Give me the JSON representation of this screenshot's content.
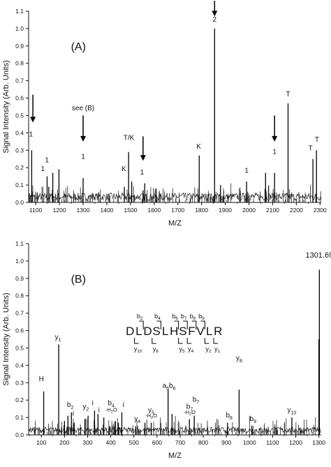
{
  "chart_data": [
    {
      "type": "line",
      "panel_label": "(A)",
      "xlabel": "M/Z",
      "ylabel": "Signal Intensity (Arb. Units)",
      "xlim": [
        1070,
        2305
      ],
      "ylim": [
        0,
        1.1
      ],
      "xticks": [
        1100,
        1200,
        1300,
        1400,
        1500,
        1600,
        1700,
        1800,
        1900,
        2000,
        2100,
        2200,
        2300
      ],
      "yticks": [
        0.0,
        0.1,
        0.2,
        0.3,
        0.4,
        0.5,
        0.6,
        0.7,
        0.8,
        0.9,
        1.0,
        1.1
      ],
      "peaks": [
        {
          "x": 1083,
          "y": 0.3
        },
        {
          "x": 1148,
          "y": 0.15
        },
        {
          "x": 1155,
          "y": 0.09
        },
        {
          "x": 1172,
          "y": 0.17
        },
        {
          "x": 1198,
          "y": 0.19
        },
        {
          "x": 1300,
          "y": 0.14
        },
        {
          "x": 1474,
          "y": 0.09
        },
        {
          "x": 1492,
          "y": 0.29
        },
        {
          "x": 1505,
          "y": 0.12
        },
        {
          "x": 1553,
          "y": 0.07
        },
        {
          "x": 1560,
          "y": 0.11
        },
        {
          "x": 1608,
          "y": 0.08
        },
        {
          "x": 1790,
          "y": 0.27
        },
        {
          "x": 1855,
          "y": 1.0
        },
        {
          "x": 1880,
          "y": 0.1
        },
        {
          "x": 1990,
          "y": 0.12
        },
        {
          "x": 2070,
          "y": 0.17
        },
        {
          "x": 2108,
          "y": 0.17
        },
        {
          "x": 2165,
          "y": 0.57
        },
        {
          "x": 2270,
          "y": 0.25
        },
        {
          "x": 2285,
          "y": 0.3
        }
      ],
      "annotations": [
        {
          "text": "1",
          "x": 1080,
          "y": 0.38
        },
        {
          "text": "1",
          "x": 1147,
          "y": 0.23
        },
        {
          "text": "1",
          "x": 1130,
          "y": 0.18
        },
        {
          "text": "see (B)",
          "x": 1300,
          "y": 0.53
        },
        {
          "text": "1",
          "x": 1300,
          "y": 0.25
        },
        {
          "text": "T/K",
          "x": 1493,
          "y": 0.36
        },
        {
          "text": "K",
          "x": 1472,
          "y": 0.18
        },
        {
          "text": "1",
          "x": 1549,
          "y": 0.16
        },
        {
          "text": "K",
          "x": 1788,
          "y": 0.31
        },
        {
          "text": "2",
          "x": 1855,
          "y": 1.04
        },
        {
          "text": "1",
          "x": 1990,
          "y": 0.17
        },
        {
          "text": "1",
          "x": 2108,
          "y": 0.28
        },
        {
          "text": "T",
          "x": 2165,
          "y": 0.61
        },
        {
          "text": "T",
          "x": 2260,
          "y": 0.3
        },
        {
          "text": "T",
          "x": 2287,
          "y": 0.35
        }
      ],
      "arrows": [
        {
          "x": 1088,
          "from": 0.62,
          "to": 0.46
        },
        {
          "x": 1300,
          "from": 0.5,
          "to": 0.35
        },
        {
          "x": 1553,
          "from": 0.38,
          "to": 0.24
        },
        {
          "x": 1855,
          "from": 1.16,
          "to": 1.07
        },
        {
          "x": 2108,
          "from": 0.5,
          "to": 0.35
        }
      ]
    },
    {
      "type": "line",
      "panel_label": "(B)",
      "xlabel": "M/Z",
      "ylabel": "Signal Intensity (Arb. Units)",
      "xlim": [
        45,
        1310
      ],
      "ylim": [
        0,
        1.1
      ],
      "xticks": [
        100,
        200,
        300,
        400,
        500,
        600,
        700,
        800,
        900,
        1000,
        1100,
        1200,
        1300
      ],
      "yticks": [
        0.0,
        0.1,
        0.2,
        0.3,
        0.4,
        0.5,
        0.6,
        0.7,
        0.8,
        0.9,
        1.0,
        1.1
      ],
      "peaks": [
        {
          "x": 110,
          "y": 0.25
        },
        {
          "x": 175,
          "y": 0.52
        },
        {
          "x": 200,
          "y": 0.08
        },
        {
          "x": 215,
          "y": 0.11
        },
        {
          "x": 230,
          "y": 0.13
        },
        {
          "x": 242,
          "y": 0.07
        },
        {
          "x": 288,
          "y": 0.09
        },
        {
          "x": 302,
          "y": 0.11
        },
        {
          "x": 330,
          "y": 0.14
        },
        {
          "x": 345,
          "y": 0.12
        },
        {
          "x": 370,
          "y": 0.1
        },
        {
          "x": 395,
          "y": 0.05
        },
        {
          "x": 420,
          "y": 0.08
        },
        {
          "x": 433,
          "y": 0.07
        },
        {
          "x": 448,
          "y": 0.13
        },
        {
          "x": 508,
          "y": 0.05
        },
        {
          "x": 548,
          "y": 0.07
        },
        {
          "x": 575,
          "y": 0.07
        },
        {
          "x": 648,
          "y": 0.26
        },
        {
          "x": 665,
          "y": 0.12
        },
        {
          "x": 740,
          "y": 0.09
        },
        {
          "x": 761,
          "y": 0.11
        },
        {
          "x": 905,
          "y": 0.07
        },
        {
          "x": 955,
          "y": 0.26
        },
        {
          "x": 1010,
          "y": 0.05
        },
        {
          "x": 1183,
          "y": 0.1
        },
        {
          "x": 1300,
          "y": 0.55
        },
        {
          "x": 1302,
          "y": 0.95
        }
      ],
      "peak_label": "1301.69",
      "annotations": [
        {
          "text": "H",
          "x": 100,
          "y": 0.31
        },
        {
          "text": "y1",
          "x": 172,
          "y": 0.55
        },
        {
          "text": "b2",
          "x": 225,
          "y": 0.16
        },
        {
          "text": "i",
          "x": 238,
          "y": 0.11
        },
        {
          "text": "y2",
          "x": 292,
          "y": 0.15
        },
        {
          "text": "i",
          "x": 322,
          "y": 0.17
        },
        {
          "text": "i",
          "x": 349,
          "y": 0.13
        },
        {
          "text": "b4",
          "x": 402,
          "y": 0.17
        },
        {
          "text": "-H2O",
          "x": 402,
          "y": 0.135
        },
        {
          "text": "i",
          "x": 455,
          "y": 0.16
        },
        {
          "text": "y4",
          "x": 515,
          "y": 0.08
        },
        {
          "text": "y5",
          "x": 575,
          "y": 0.13
        },
        {
          "text": "-H2O",
          "x": 575,
          "y": 0.1
        },
        {
          "text": "a6b6",
          "x": 652,
          "y": 0.27
        },
        {
          "text": "b7",
          "x": 768,
          "y": 0.19
        },
        {
          "text": "b7",
          "x": 741,
          "y": 0.15
        },
        {
          "text": "-H2O",
          "x": 741,
          "y": 0.12
        },
        {
          "text": "b8",
          "x": 912,
          "y": 0.1
        },
        {
          "text": "y8",
          "x": 955,
          "y": 0.43
        },
        {
          "text": "b9",
          "x": 1015,
          "y": 0.08
        },
        {
          "text": "y10",
          "x": 1183,
          "y": 0.13
        }
      ],
      "sequence": {
        "peptide": "DLDSLHSFVLR",
        "b_ions": [
          "b2",
          "b4",
          "b6",
          "b7",
          "b8",
          "b9"
        ],
        "y_ions": [
          "y10",
          "y8",
          "y5",
          "y4",
          "y2",
          "y1"
        ]
      }
    }
  ]
}
